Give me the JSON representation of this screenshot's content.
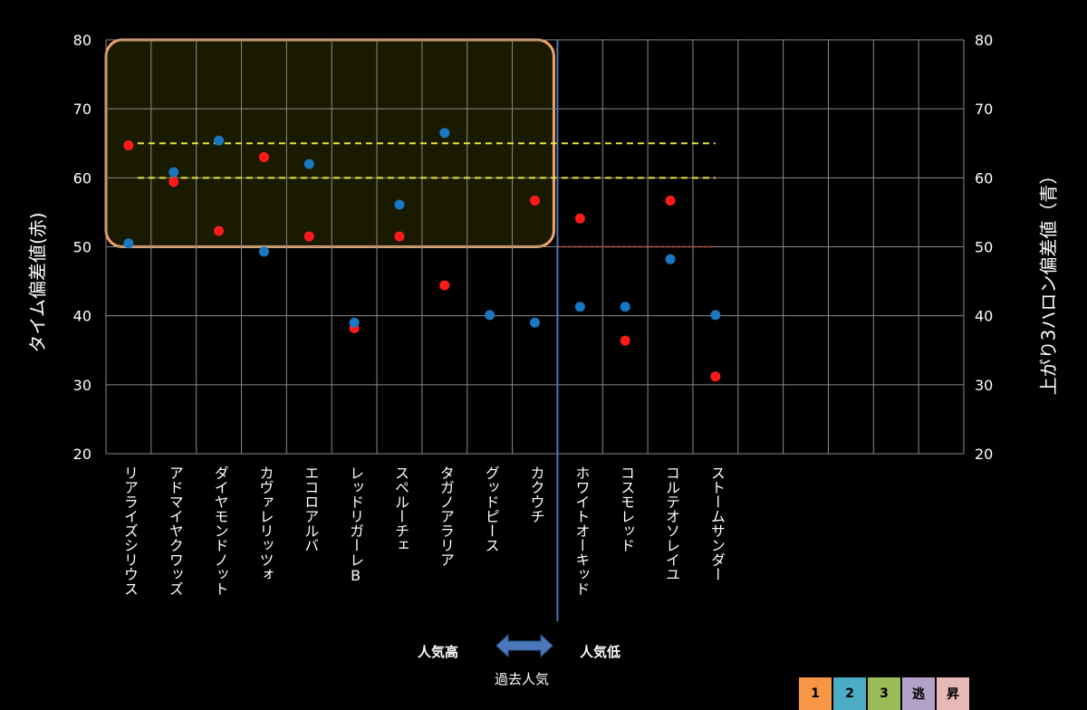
{
  "chart_data": {
    "type": "scatter",
    "categories": [
      "リアライズシリウス",
      "アドマイヤクワッズ",
      "ダイヤモンドノット",
      "カヴァレリッツォ",
      "エコロアルバ",
      "レッドリガーレB",
      "スペルーチェ",
      "タガノアラリア",
      "グッドピース",
      "カクウチ",
      "ホワイトオーキッド",
      "コスモレッド",
      "コルテオソレイユ",
      "ストームサンダー"
    ],
    "series": [
      {
        "color": "#ff1a1a",
        "values": [
          64.7,
          59.4,
          52.3,
          63.0,
          51.5,
          38.2,
          51.5,
          44.4,
          null,
          56.7,
          54.1,
          36.4,
          56.7,
          31.2
        ]
      },
      {
        "color": "#1a78c2",
        "values": [
          50.5,
          60.8,
          65.4,
          49.3,
          62.0,
          39.0,
          56.1,
          66.5,
          40.1,
          39.0,
          41.3,
          41.3,
          48.2,
          40.1
        ]
      }
    ],
    "ylabel_left": "タイム偏差値(赤)",
    "ylabel_right": "上がり3ハロン偏差値（青）",
    "ylim": [
      20,
      80
    ],
    "yticks": [
      "20",
      "30",
      "40",
      "50",
      "60",
      "70",
      "80"
    ],
    "reference_lines": [
      {
        "y": 65,
        "color": "#e6e63c",
        "style": "dashed"
      },
      {
        "y": 60,
        "color": "#e6e63c",
        "style": "dashed"
      },
      {
        "y": 50,
        "color": "#c0392b",
        "style": "dotted"
      }
    ],
    "highlight_color": "#f4a46a",
    "grid": true
  },
  "annotations": {
    "popular_high": "人気高",
    "popular_low": "人気低",
    "past_popularity": "過去人気",
    "arrow_color": "#4a78b8"
  },
  "legend": [
    {
      "label": "1",
      "color": "#f79646"
    },
    {
      "label": "2",
      "color": "#4bacc6"
    },
    {
      "label": "3",
      "color": "#9bbb59"
    },
    {
      "label": "逃",
      "color": "#b3a2c7"
    },
    {
      "label": "昇",
      "color": "#e6b9b8"
    }
  ]
}
